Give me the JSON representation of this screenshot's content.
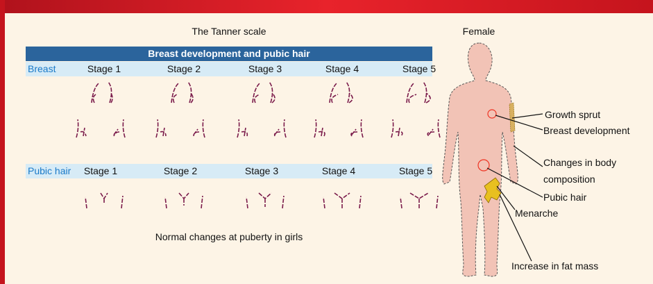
{
  "title": "The Tanner scale",
  "table": {
    "header": "Breast development and pubic hair",
    "rows": [
      {
        "label": "Breast",
        "stages": [
          "Stage 1",
          "Stage 2",
          "Stage 3",
          "Stage 4",
          "Stage 5"
        ]
      },
      {
        "label": "Pubic hair",
        "stages": [
          "Stage 1",
          "Stage 2",
          "Stage 3",
          "Stage 4",
          "Stage 5"
        ]
      }
    ]
  },
  "caption": "Normal changes at puberty in girls",
  "figure": {
    "title": "Female",
    "labels": [
      "Growth sprut",
      "Breast development",
      "Changes in body composition",
      "Pubic hair",
      "Menarche",
      "Increase in fat mass"
    ]
  }
}
